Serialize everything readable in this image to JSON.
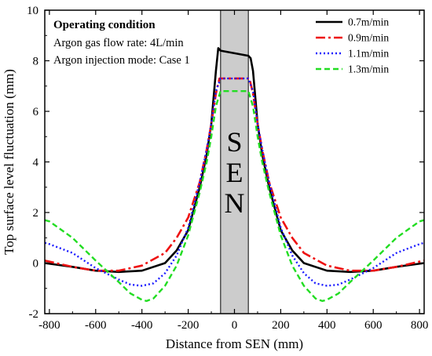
{
  "chart_data": {
    "type": "line",
    "xlabel": "Distance from SEN (mm)",
    "ylabel": "Top surface level fluctuation (mm)",
    "xlim": [
      -820,
      820
    ],
    "ylim": [
      -2,
      10
    ],
    "xticks": [
      -800,
      -600,
      -400,
      -200,
      0,
      200,
      400,
      600,
      800
    ],
    "yticks": [
      -2,
      0,
      2,
      4,
      6,
      8,
      10
    ],
    "grid": false,
    "legend_position": "top-right",
    "annotation": {
      "title": "Operating condition",
      "lines": [
        "Argon gas flow rate: 4L/min",
        "Argon injection mode: Case 1"
      ]
    },
    "sen_region": {
      "x_range": [
        -60,
        60
      ],
      "letters": [
        "S",
        "E",
        "N"
      ]
    },
    "series": [
      {
        "name": "0.7m/min",
        "color": "#000000",
        "dash": "solid",
        "x": [
          -820,
          -700,
          -600,
          -500,
          -400,
          -300,
          -250,
          -200,
          -150,
          -120,
          -100,
          -80,
          -70,
          -60,
          60,
          70,
          80,
          100,
          120,
          150,
          200,
          250,
          300,
          400,
          500,
          600,
          700,
          820
        ],
        "y": [
          0.0,
          -0.15,
          -0.3,
          -0.35,
          -0.3,
          0.0,
          0.5,
          1.3,
          3.0,
          4.3,
          5.5,
          7.6,
          8.5,
          8.4,
          8.2,
          8.1,
          7.6,
          5.5,
          4.3,
          3.0,
          1.3,
          0.5,
          0.0,
          -0.3,
          -0.35,
          -0.3,
          -0.15,
          0.0
        ]
      },
      {
        "name": "0.9m/min",
        "color": "#ee1111",
        "dash": "dashdot",
        "x": [
          -820,
          -700,
          -600,
          -500,
          -400,
          -300,
          -250,
          -200,
          -150,
          -120,
          -100,
          -80,
          -65,
          65,
          80,
          100,
          120,
          150,
          200,
          250,
          300,
          400,
          500,
          600,
          700,
          820
        ],
        "y": [
          0.1,
          -0.15,
          -0.3,
          -0.3,
          -0.1,
          0.4,
          1.0,
          1.8,
          3.2,
          4.5,
          5.5,
          6.7,
          7.3,
          7.3,
          6.7,
          5.5,
          4.5,
          3.2,
          1.8,
          1.0,
          0.4,
          -0.1,
          -0.3,
          -0.3,
          -0.15,
          0.1
        ]
      },
      {
        "name": "1.1m/min",
        "color": "#1a1aff",
        "dash": "dotted",
        "x": [
          -820,
          -800,
          -700,
          -600,
          -500,
          -450,
          -400,
          -350,
          -300,
          -250,
          -200,
          -150,
          -120,
          -100,
          -80,
          -60,
          60,
          80,
          100,
          120,
          150,
          200,
          250,
          300,
          350,
          400,
          450,
          500,
          600,
          700,
          800,
          820
        ],
        "y": [
          0.8,
          0.75,
          0.4,
          -0.2,
          -0.65,
          -0.85,
          -0.9,
          -0.8,
          -0.4,
          0.3,
          1.4,
          3.2,
          4.5,
          5.5,
          6.8,
          7.3,
          7.3,
          6.8,
          5.5,
          4.5,
          3.2,
          1.4,
          0.3,
          -0.4,
          -0.8,
          -0.9,
          -0.85,
          -0.65,
          -0.2,
          0.4,
          0.75,
          0.8
        ]
      },
      {
        "name": "1.3m/min",
        "color": "#22dd22",
        "dash": "dashed",
        "x": [
          -820,
          -800,
          -700,
          -600,
          -500,
          -450,
          -400,
          -380,
          -350,
          -300,
          -250,
          -200,
          -150,
          -120,
          -100,
          -80,
          -60,
          60,
          80,
          100,
          120,
          150,
          200,
          250,
          300,
          350,
          380,
          400,
          450,
          500,
          600,
          700,
          800,
          820
        ],
        "y": [
          1.7,
          1.65,
          1.0,
          0.1,
          -0.75,
          -1.2,
          -1.45,
          -1.5,
          -1.4,
          -0.9,
          -0.1,
          1.1,
          2.8,
          4.0,
          5.0,
          6.2,
          6.8,
          6.8,
          6.2,
          5.0,
          4.0,
          2.8,
          1.1,
          -0.1,
          -0.9,
          -1.4,
          -1.5,
          -1.45,
          -1.2,
          -0.75,
          0.1,
          1.0,
          1.65,
          1.7
        ]
      }
    ]
  }
}
